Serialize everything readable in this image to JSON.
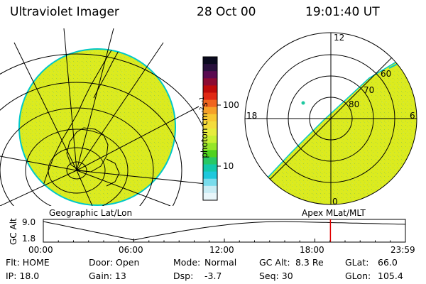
{
  "header": {
    "instrument": "Ultraviolet Imager",
    "date": "28 Oct 00",
    "time": "19:01:40 UT"
  },
  "colors": {
    "aurora_fill": "#dceb1e",
    "edge": "#00c8c8",
    "line": "#000000",
    "marker": "#e00000"
  },
  "geo_panel": {
    "label": "Geographic Lat/Lon"
  },
  "polar_panel": {
    "label": "Apex MLat/MLT",
    "mlt_labels": {
      "top": "12",
      "left": "18",
      "right": "6",
      "bottom": "0"
    },
    "lat_labels": [
      "60",
      "70",
      "80"
    ]
  },
  "colorbar": {
    "unit_label": "photon cm^-2 s^-1",
    "unit_base": "photon cm",
    "unit_exp1": "-2",
    "unit_mid": "s",
    "unit_exp2": "-1",
    "ticks": [
      "100",
      "10"
    ],
    "colors": [
      "#0a0a1e",
      "#28103c",
      "#5a0a50",
      "#8c0a32",
      "#be0a0a",
      "#e02814",
      "#f0641e",
      "#f5a028",
      "#f7c832",
      "#f4dc3c",
      "#e6ec3c",
      "#c8f032",
      "#96e628",
      "#50d21e",
      "#28c864",
      "#14c8aa",
      "#1ec8dc",
      "#78dcec",
      "#c8ecf4",
      "#e8f6fa"
    ]
  },
  "timeline": {
    "axis_label": "GC Alt",
    "y_ticks": [
      "9.0",
      "1.8"
    ],
    "x_ticks": [
      "00:00",
      "06:00",
      "12:00",
      "18:00",
      "23:59"
    ],
    "marker_time_hours": 19.03
  },
  "info": {
    "flt": "Flt: HOME",
    "door": "Door: Open",
    "mode_label": "Mode:",
    "mode_value": "Normal",
    "gc_alt_label": "GC Alt:",
    "gc_alt_value": "8.3 Re",
    "glat_label": "GLat:",
    "glat_value": "66.0",
    "ip": "IP: 18.0",
    "gain": "Gain: 13",
    "dsp_label": "Dsp:",
    "dsp_value": "-3.7",
    "seq": "Seq: 30",
    "glon_label": "GLon:",
    "glon_value": "105.4"
  }
}
